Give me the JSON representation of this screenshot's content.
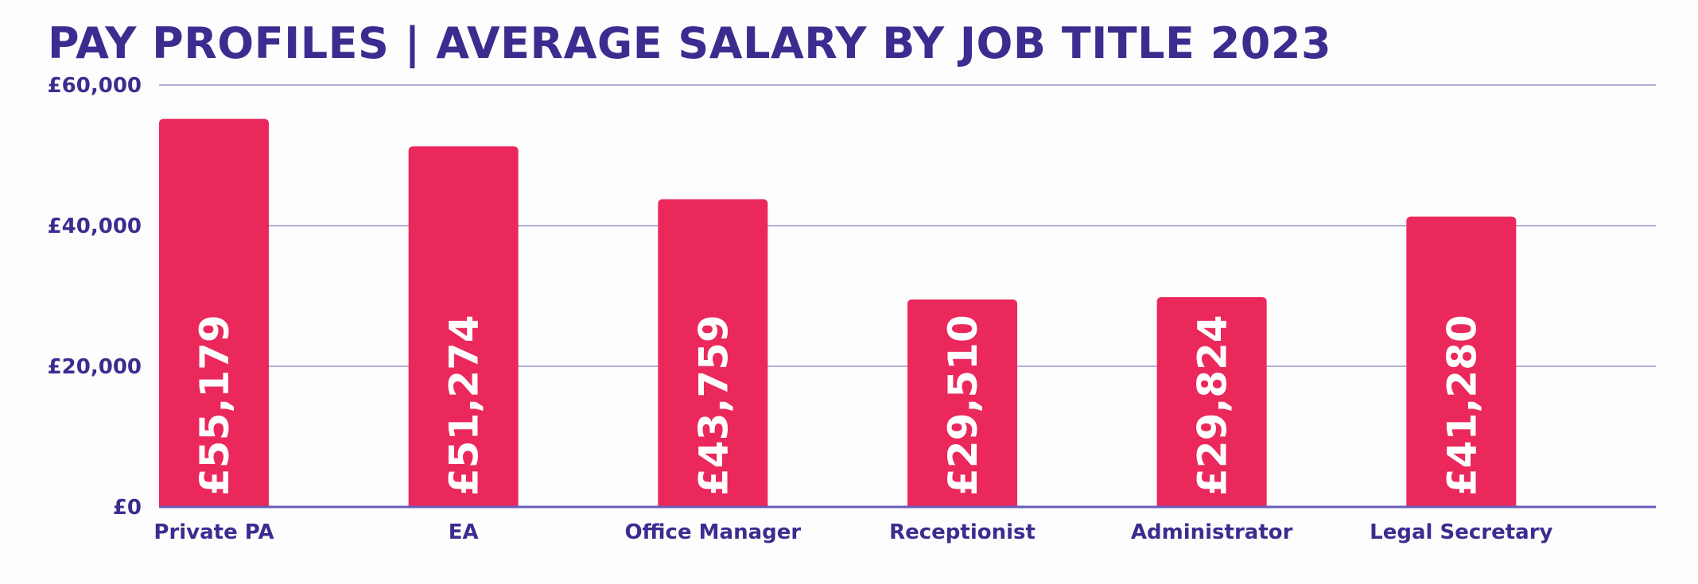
{
  "colors": {
    "title": "#3b2d8f",
    "axis_text": "#3b2d8f",
    "bar": "#eb285c",
    "value_text": "#ffffff",
    "grid": "#b5acd6",
    "baseline": "#6a5ab8",
    "background": "#fdfdfd"
  },
  "chart_data": {
    "type": "bar",
    "title": "PAY PROFILES | AVERAGE SALARY BY JOB TITLE 2023",
    "xlabel": "",
    "ylabel": "",
    "categories": [
      "Private PA",
      "EA",
      "Office Manager",
      "Receptionist",
      "Administrator",
      "Legal Secretary"
    ],
    "values": [
      55179,
      51274,
      43759,
      29510,
      29824,
      41280
    ],
    "value_labels": [
      "£55,179",
      "£51,274",
      "£43,759",
      "£29,510",
      "£29,824",
      "£41,280"
    ],
    "ylim": [
      0,
      60000
    ],
    "yticks": [
      0,
      20000,
      40000,
      60000
    ],
    "ytick_labels": [
      "£0",
      "£20,000",
      "£40,000",
      "£60,000"
    ],
    "grid": true,
    "legend": "none",
    "value_label_orientation": "vertical"
  }
}
